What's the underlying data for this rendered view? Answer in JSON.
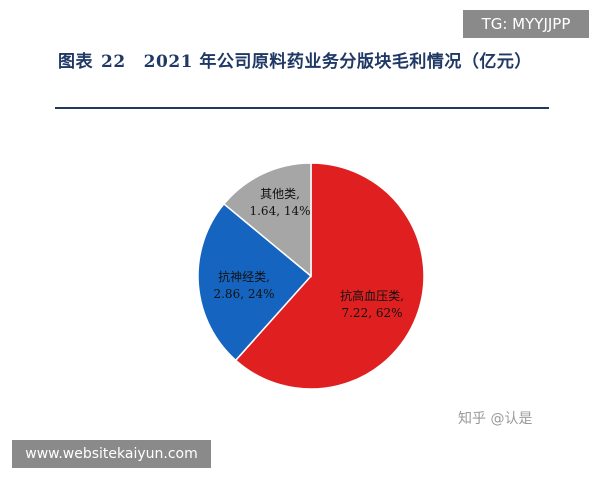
{
  "top_tag": "TG: MYYJJPP",
  "title": {
    "label": "图表",
    "number": "22",
    "text": "2021 年公司原料药业务分版块毛利情况（亿元）"
  },
  "watermark": "知乎 @认是",
  "bottom_tag": "www.websitekaiyun.com",
  "chart_data": {
    "type": "pie",
    "title": "2021 年公司原料药业务分版块毛利情况（亿元）",
    "start_angle_deg": 0,
    "direction": "clockwise",
    "slices": [
      {
        "name": "抗高血压类",
        "value": 7.22,
        "percent": "62%",
        "label_value": "7.22, 62%",
        "color": "#e02020"
      },
      {
        "name": "抗神经类",
        "value": 2.86,
        "percent": "24%",
        "label_value": "2.86, 24%",
        "color": "#1565c0"
      },
      {
        "name": "其他类",
        "value": 1.64,
        "percent": "14%",
        "label_value": "1.64, 14%",
        "color": "#a6a6a6"
      }
    ]
  }
}
